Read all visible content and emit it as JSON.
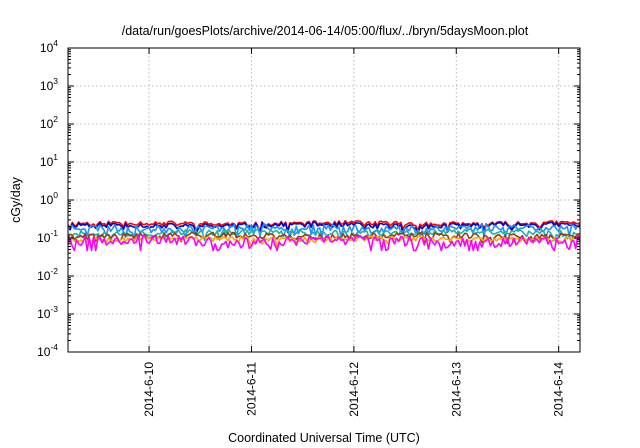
{
  "chart_data": {
    "type": "line",
    "title": "/data/run/goesPlots/archive/2014-06-14/05:00/flux/../bryn/5daysMoon.plot",
    "xlabel": "Coordinated Universal Time (UTC)",
    "ylabel": "cGy/day",
    "y_scale": "log",
    "ylim": [
      0.0001,
      10000
    ],
    "y_ticks": [
      {
        "base": "10",
        "exp": "4",
        "value": 10000
      },
      {
        "base": "10",
        "exp": "3",
        "value": 1000
      },
      {
        "base": "10",
        "exp": "2",
        "value": 100
      },
      {
        "base": "10",
        "exp": "1",
        "value": 10
      },
      {
        "base": "10",
        "exp": "0",
        "value": 1
      },
      {
        "base": "10",
        "exp": "-1",
        "value": 0.1
      },
      {
        "base": "10",
        "exp": "-2",
        "value": 0.01
      },
      {
        "base": "10",
        "exp": "-3",
        "value": 0.001
      },
      {
        "base": "10",
        "exp": "-4",
        "value": 0.0001
      }
    ],
    "xlim": [
      "2014-06-09 05:00",
      "2014-06-14 05:00"
    ],
    "x_ticks": [
      {
        "label": "2014-6-10",
        "value": "2014-06-10 00:00"
      },
      {
        "label": "2014-6-11",
        "value": "2014-06-11 00:00"
      },
      {
        "label": "2014-6-12",
        "value": "2014-06-12 00:00"
      },
      {
        "label": "2014-6-13",
        "value": "2014-06-13 00:00"
      },
      {
        "label": "2014-6-14",
        "value": "2014-06-14 00:00"
      }
    ],
    "grid": true,
    "legend": "none",
    "series": [
      {
        "color": "#ff0000",
        "base": 0.24,
        "amp": 0.035,
        "seed": 11
      },
      {
        "color": "#0000cc",
        "base": 0.215,
        "amp": 0.035,
        "seed": 11
      },
      {
        "color": "#1e90ff",
        "base": 0.185,
        "amp": 0.04,
        "seed": 23
      },
      {
        "color": "#20b2aa",
        "base": 0.14,
        "amp": 0.025,
        "seed": 37
      },
      {
        "color": "#8b4513",
        "base": 0.115,
        "amp": 0.02,
        "seed": 41
      },
      {
        "color": "#ffa500",
        "base": 0.095,
        "amp": 0.015,
        "seed": 53
      },
      {
        "color": "#ff00ff",
        "base": 0.085,
        "amp": 0.025,
        "seed": 67
      }
    ]
  }
}
